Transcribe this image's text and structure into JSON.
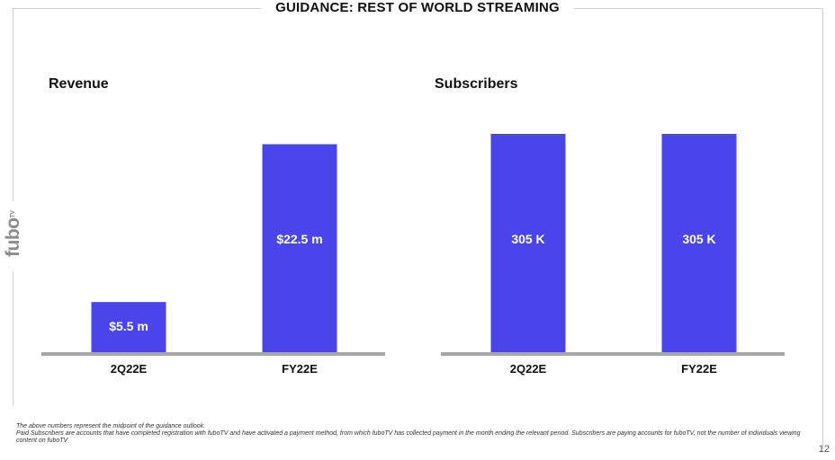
{
  "page": {
    "title": "GUIDANCE: REST OF WORLD STREAMING",
    "logo_text": "fubo",
    "logo_superscript": "TV",
    "page_number": "12"
  },
  "footnotes": [
    "The above numbers represent the midpoint of the guidance outlook.",
    "Paid Subscribers are accounts that have completed registration with fuboTV and have activated a payment method, from which fuboTV has collected payment in the month ending the relevant period. Subscribers are paying accounts for fuboTV, not the number of individuals viewing content on fuboTV"
  ],
  "colors": {
    "bar": "#4a45ea",
    "axis": "#a6a6a6",
    "bar_label": "#ffffff"
  },
  "chart_data": [
    {
      "type": "bar",
      "title": "Revenue",
      "categories": [
        "2Q22E",
        "FY22E"
      ],
      "values": [
        5.5,
        22.5
      ],
      "data_labels": [
        "$5.5 m",
        "$22.5 m"
      ],
      "unit": "$ m",
      "ylim": [
        0,
        24
      ],
      "grid": false,
      "legend": "none"
    },
    {
      "type": "bar",
      "title": "Subscribers",
      "categories": [
        "2Q22E",
        "FY22E"
      ],
      "values": [
        305,
        305
      ],
      "data_labels": [
        "305 K",
        "305 K"
      ],
      "unit": "K",
      "ylim": [
        0,
        310
      ],
      "grid": false,
      "legend": "none"
    }
  ]
}
